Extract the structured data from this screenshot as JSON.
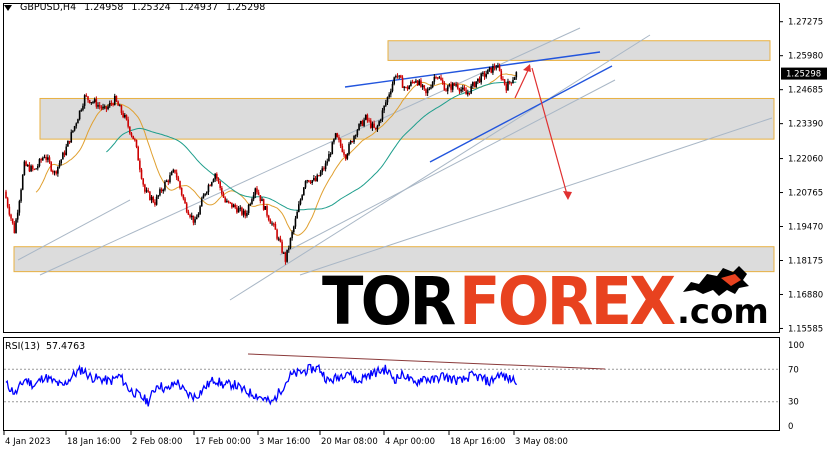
{
  "header": {
    "symbol": "GBPUSD,H4",
    "open": "1.24958",
    "high": "1.25324",
    "low": "1.24937",
    "close": "1.25298"
  },
  "rsi_header": {
    "name": "RSI(13)",
    "value": "57.4763"
  },
  "logo": {
    "tor": "TOR",
    "forex": "FOREX",
    "com": ".com"
  },
  "colors": {
    "bull": "#000000",
    "bear": "#cc0000",
    "ma_fast": "#e0a030",
    "ma_slow": "#1e9e8c",
    "zone_fill": "#dcdcdc",
    "zone_border": "#e8b040",
    "channel_blue": "#2255dd",
    "channel_gray": "#a9b7c6",
    "forecast_arrow": "#e03030",
    "rsi_line": "#0000ff",
    "rsi_divergence": "#8b3a3a",
    "logo_accent": "#e8421f"
  },
  "chart_data": [
    {
      "type": "candlestick",
      "title": "GBPUSD,H4",
      "y_axis_ticks": [
        "1.27275",
        "1.25980",
        "1.24685",
        "1.23390",
        "1.22060",
        "1.20765",
        "1.19470",
        "1.18175",
        "1.16880",
        "1.15585"
      ],
      "ylim": [
        1.1545,
        1.2795
      ],
      "current_price_label": "1.25298",
      "x_axis_ticks": [
        "4 Jan 2023",
        "18 Jan 16:00",
        "2 Feb 08:00",
        "17 Feb 00:00",
        "3 Mar 16:00",
        "20 Mar 08:00",
        "4 Apr 00:00",
        "18 Apr 16:00",
        "3 May 08:00"
      ],
      "close_path": [
        {
          "x": 0,
          "y": 1.208
        },
        {
          "x": 1,
          "y": 1.193
        },
        {
          "x": 2,
          "y": 1.218
        },
        {
          "x": 3,
          "y": 1.216
        },
        {
          "x": 4,
          "y": 1.222
        },
        {
          "x": 5,
          "y": 1.215
        },
        {
          "x": 6,
          "y": 1.223
        },
        {
          "x": 7,
          "y": 1.233
        },
        {
          "x": 8,
          "y": 1.244
        },
        {
          "x": 9,
          "y": 1.242
        },
        {
          "x": 10,
          "y": 1.239
        },
        {
          "x": 11,
          "y": 1.243
        },
        {
          "x": 12,
          "y": 1.236
        },
        {
          "x": 13,
          "y": 1.227
        },
        {
          "x": 14,
          "y": 1.208
        },
        {
          "x": 15,
          "y": 1.204
        },
        {
          "x": 16,
          "y": 1.211
        },
        {
          "x": 17,
          "y": 1.216
        },
        {
          "x": 18,
          "y": 1.203
        },
        {
          "x": 19,
          "y": 1.196
        },
        {
          "x": 20,
          "y": 1.208
        },
        {
          "x": 21,
          "y": 1.215
        },
        {
          "x": 22,
          "y": 1.204
        },
        {
          "x": 23,
          "y": 1.202
        },
        {
          "x": 24,
          "y": 1.199
        },
        {
          "x": 25,
          "y": 1.21
        },
        {
          "x": 26,
          "y": 1.201
        },
        {
          "x": 27,
          "y": 1.193
        },
        {
          "x": 28,
          "y": 1.182
        },
        {
          "x": 29,
          "y": 1.197
        },
        {
          "x": 30,
          "y": 1.213
        },
        {
          "x": 31,
          "y": 1.212
        },
        {
          "x": 32,
          "y": 1.218
        },
        {
          "x": 33,
          "y": 1.229
        },
        {
          "x": 34,
          "y": 1.222
        },
        {
          "x": 35,
          "y": 1.231
        },
        {
          "x": 36,
          "y": 1.236
        },
        {
          "x": 37,
          "y": 1.231
        },
        {
          "x": 38,
          "y": 1.242
        },
        {
          "x": 39,
          "y": 1.253
        },
        {
          "x": 40,
          "y": 1.247
        },
        {
          "x": 41,
          "y": 1.251
        },
        {
          "x": 42,
          "y": 1.245
        },
        {
          "x": 43,
          "y": 1.253
        },
        {
          "x": 44,
          "y": 1.247
        },
        {
          "x": 45,
          "y": 1.249
        },
        {
          "x": 46,
          "y": 1.245
        },
        {
          "x": 47,
          "y": 1.25
        },
        {
          "x": 48,
          "y": 1.253
        },
        {
          "x": 49,
          "y": 1.256
        },
        {
          "x": 50,
          "y": 1.248
        },
        {
          "x": 51,
          "y": 1.253
        }
      ],
      "support_resistance_zones": [
        {
          "from": 1.258,
          "to": 1.2655
        },
        {
          "from": 1.228,
          "to": 1.2435
        },
        {
          "from": 1.1775,
          "to": 1.187
        }
      ]
    },
    {
      "type": "line",
      "title": "RSI(13) 57.4763",
      "y_axis_ticks": [
        "100",
        "70",
        "30",
        "0"
      ],
      "ylim": [
        0,
        100
      ],
      "values": [
        52,
        40,
        58,
        50,
        61,
        55,
        49,
        62,
        70,
        60,
        58,
        55,
        62,
        45,
        38,
        30,
        52,
        44,
        55,
        40,
        36,
        48,
        58,
        50,
        52,
        44,
        40,
        35,
        28,
        45,
        62,
        66,
        70,
        72,
        55,
        60,
        68,
        54,
        62,
        66,
        70,
        58,
        64,
        52,
        60,
        56,
        62,
        58,
        55,
        62,
        60,
        54,
        64,
        58,
        57
      ]
    }
  ]
}
